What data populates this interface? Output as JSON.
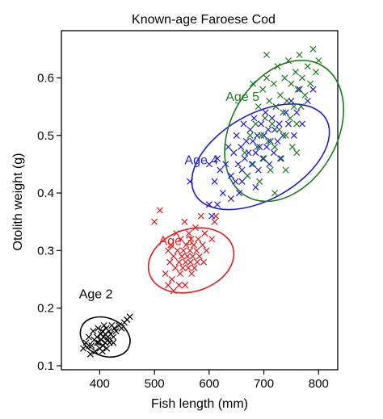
{
  "chart_data": {
    "type": "scatter",
    "title": "Known-age Faroese Cod",
    "xlabel": "Fish length (mm)",
    "ylabel": "Otolith weight (g)",
    "xlim": [
      330,
      835
    ],
    "ylim": [
      0.093,
      0.682
    ],
    "xticks": [
      400,
      500,
      600,
      700,
      800
    ],
    "yticks": [
      0.1,
      0.2,
      0.3,
      0.4,
      0.5,
      0.6
    ],
    "grid": false,
    "legend": "none",
    "marker": "x",
    "series": [
      {
        "name": "Age 2",
        "color": "#000000",
        "label": {
          "text": "Age 2",
          "x": 362,
          "y": 0.217
        },
        "ellipse": {
          "cx": 410,
          "cy": 0.15,
          "rx": 47,
          "ry": 0.033,
          "rotation": 22
        },
        "points": [
          [
            370,
            0.13
          ],
          [
            375,
            0.14
          ],
          [
            380,
            0.15
          ],
          [
            383,
            0.12
          ],
          [
            385,
            0.135
          ],
          [
            388,
            0.16
          ],
          [
            390,
            0.145
          ],
          [
            392,
            0.125
          ],
          [
            395,
            0.15
          ],
          [
            397,
            0.165
          ],
          [
            398,
            0.14
          ],
          [
            400,
            0.13
          ],
          [
            402,
            0.155
          ],
          [
            403,
            0.145
          ],
          [
            405,
            0.16
          ],
          [
            406,
            0.135
          ],
          [
            407,
            0.15
          ],
          [
            408,
            0.17
          ],
          [
            410,
            0.14
          ],
          [
            410,
            0.155
          ],
          [
            412,
            0.165
          ],
          [
            413,
            0.13
          ],
          [
            415,
            0.15
          ],
          [
            417,
            0.16
          ],
          [
            418,
            0.14
          ],
          [
            420,
            0.155
          ],
          [
            422,
            0.17
          ],
          [
            425,
            0.15
          ],
          [
            427,
            0.165
          ],
          [
            430,
            0.16
          ],
          [
            435,
            0.17
          ],
          [
            440,
            0.165
          ],
          [
            445,
            0.175
          ],
          [
            450,
            0.18
          ],
          [
            455,
            0.185
          ],
          [
            380,
            0.135
          ],
          [
            395,
            0.14
          ],
          [
            405,
            0.125
          ],
          [
            415,
            0.145
          ],
          [
            425,
            0.14
          ]
        ]
      },
      {
        "name": "Age 3",
        "color": "#e31a1c",
        "label": {
          "text": "Age 3",
          "x": 508,
          "y": 0.31
        },
        "ellipse": {
          "cx": 567,
          "cy": 0.283,
          "rx": 80,
          "ry": 0.054,
          "rotation": -18
        },
        "points": [
          [
            520,
            0.26
          ],
          [
            525,
            0.3
          ],
          [
            528,
            0.28
          ],
          [
            530,
            0.31
          ],
          [
            532,
            0.25
          ],
          [
            535,
            0.29
          ],
          [
            538,
            0.27
          ],
          [
            540,
            0.33
          ],
          [
            542,
            0.3
          ],
          [
            545,
            0.28
          ],
          [
            547,
            0.26
          ],
          [
            548,
            0.32
          ],
          [
            550,
            0.29
          ],
          [
            552,
            0.27
          ],
          [
            553,
            0.3
          ],
          [
            555,
            0.35
          ],
          [
            556,
            0.24
          ],
          [
            557,
            0.28
          ],
          [
            558,
            0.31
          ],
          [
            560,
            0.29
          ],
          [
            562,
            0.27
          ],
          [
            563,
            0.33
          ],
          [
            565,
            0.3
          ],
          [
            566,
            0.28
          ],
          [
            567,
            0.32
          ],
          [
            568,
            0.26
          ],
          [
            570,
            0.29
          ],
          [
            572,
            0.31
          ],
          [
            573,
            0.27
          ],
          [
            575,
            0.34
          ],
          [
            577,
            0.3
          ],
          [
            578,
            0.28
          ],
          [
            580,
            0.32
          ],
          [
            582,
            0.29
          ],
          [
            585,
            0.36
          ],
          [
            588,
            0.31
          ],
          [
            590,
            0.28
          ],
          [
            592,
            0.33
          ],
          [
            595,
            0.3
          ],
          [
            600,
            0.38
          ],
          [
            605,
            0.32
          ],
          [
            610,
            0.35
          ],
          [
            612,
            0.36
          ],
          [
            525,
            0.24
          ],
          [
            535,
            0.23
          ],
          [
            545,
            0.24
          ],
          [
            510,
            0.37
          ],
          [
            500,
            0.35
          ]
        ]
      },
      {
        "name": "Age 4",
        "color": "#1f1fd0",
        "label": {
          "text": "Age 4",
          "x": 555,
          "y": 0.45
        },
        "ellipse": {
          "cx": 694,
          "cy": 0.463,
          "rx": 138,
          "ry": 0.074,
          "rotation": -30
        },
        "points": [
          [
            610,
            0.42
          ],
          [
            615,
            0.46
          ],
          [
            620,
            0.44
          ],
          [
            625,
            0.4
          ],
          [
            630,
            0.45
          ],
          [
            635,
            0.48
          ],
          [
            640,
            0.43
          ],
          [
            645,
            0.47
          ],
          [
            648,
            0.42
          ],
          [
            650,
            0.5
          ],
          [
            653,
            0.45
          ],
          [
            655,
            0.4
          ],
          [
            658,
            0.48
          ],
          [
            660,
            0.44
          ],
          [
            663,
            0.52
          ],
          [
            665,
            0.46
          ],
          [
            668,
            0.49
          ],
          [
            670,
            0.43
          ],
          [
            672,
            0.47
          ],
          [
            675,
            0.51
          ],
          [
            678,
            0.45
          ],
          [
            680,
            0.49
          ],
          [
            682,
            0.53
          ],
          [
            685,
            0.47
          ],
          [
            688,
            0.5
          ],
          [
            690,
            0.44
          ],
          [
            692,
            0.48
          ],
          [
            695,
            0.52
          ],
          [
            698,
            0.46
          ],
          [
            700,
            0.5
          ],
          [
            703,
            0.54
          ],
          [
            705,
            0.48
          ],
          [
            708,
            0.51
          ],
          [
            710,
            0.45
          ],
          [
            712,
            0.49
          ],
          [
            715,
            0.53
          ],
          [
            718,
            0.47
          ],
          [
            720,
            0.51
          ],
          [
            722,
            0.55
          ],
          [
            725,
            0.49
          ],
          [
            728,
            0.52
          ],
          [
            730,
            0.46
          ],
          [
            735,
            0.5
          ],
          [
            740,
            0.54
          ],
          [
            745,
            0.52
          ],
          [
            750,
            0.56
          ],
          [
            755,
            0.5
          ],
          [
            760,
            0.54
          ],
          [
            765,
            0.58
          ],
          [
            770,
            0.52
          ],
          [
            780,
            0.56
          ],
          [
            790,
            0.58
          ],
          [
            600,
            0.38
          ],
          [
            605,
            0.36
          ],
          [
            615,
            0.38
          ],
          [
            565,
            0.42
          ],
          [
            600,
            0.45
          ],
          [
            640,
            0.39
          ],
          [
            660,
            0.42
          ],
          [
            685,
            0.41
          ]
        ]
      },
      {
        "name": "Age 5",
        "color": "#1e7a1e",
        "label": {
          "text": "Age 5",
          "x": 630,
          "y": 0.56
        },
        "ellipse": {
          "cx": 737,
          "cy": 0.508,
          "rx": 138,
          "ry": 0.092,
          "rotation": -60
        },
        "points": [
          [
            665,
            0.47
          ],
          [
            670,
            0.43
          ],
          [
            675,
            0.5
          ],
          [
            680,
            0.45
          ],
          [
            685,
            0.52
          ],
          [
            688,
            0.48
          ],
          [
            690,
            0.55
          ],
          [
            692,
            0.42
          ],
          [
            695,
            0.5
          ],
          [
            698,
            0.58
          ],
          [
            700,
            0.46
          ],
          [
            702,
            0.53
          ],
          [
            705,
            0.6
          ],
          [
            708,
            0.49
          ],
          [
            710,
            0.56
          ],
          [
            712,
            0.44
          ],
          [
            715,
            0.52
          ],
          [
            718,
            0.59
          ],
          [
            720,
            0.48
          ],
          [
            722,
            0.55
          ],
          [
            725,
            0.62
          ],
          [
            728,
            0.51
          ],
          [
            730,
            0.57
          ],
          [
            732,
            0.46
          ],
          [
            735,
            0.54
          ],
          [
            738,
            0.6
          ],
          [
            740,
            0.5
          ],
          [
            742,
            0.56
          ],
          [
            745,
            0.63
          ],
          [
            748,
            0.53
          ],
          [
            750,
            0.59
          ],
          [
            752,
            0.48
          ],
          [
            755,
            0.55
          ],
          [
            758,
            0.61
          ],
          [
            760,
            0.52
          ],
          [
            762,
            0.58
          ],
          [
            765,
            0.64
          ],
          [
            768,
            0.55
          ],
          [
            770,
            0.6
          ],
          [
            775,
            0.57
          ],
          [
            780,
            0.62
          ],
          [
            785,
            0.59
          ],
          [
            790,
            0.65
          ],
          [
            795,
            0.61
          ],
          [
            800,
            0.63
          ],
          [
            705,
            0.64
          ],
          [
            720,
            0.4
          ],
          [
            740,
            0.44
          ],
          [
            760,
            0.47
          ],
          [
            680,
            0.59
          ]
        ]
      }
    ]
  }
}
